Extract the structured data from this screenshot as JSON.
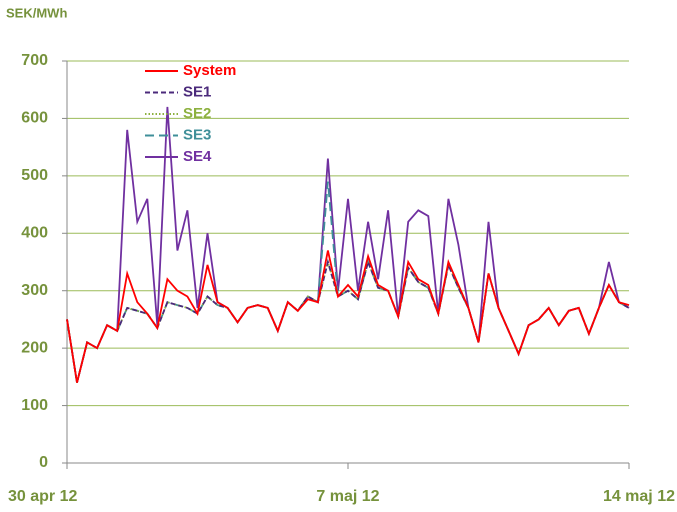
{
  "chart_data": {
    "type": "line",
    "title": "SEK/MWh",
    "categories": [
      "30 apr 12",
      null,
      null,
      null,
      null,
      null,
      null,
      null,
      null,
      null,
      null,
      null,
      null,
      null,
      null,
      null,
      null,
      null,
      null,
      null,
      null,
      null,
      null,
      null,
      null,
      null,
      null,
      null,
      "7 maj 12",
      null,
      null,
      null,
      null,
      null,
      null,
      null,
      null,
      null,
      null,
      null,
      null,
      null,
      null,
      null,
      null,
      null,
      null,
      null,
      null,
      null,
      null,
      null,
      null,
      null,
      null,
      null,
      "14 maj 12"
    ],
    "series": [
      {
        "name": "System",
        "color": "#ff0000",
        "linestyle": "solid",
        "values": [
          250,
          140,
          210,
          200,
          240,
          230,
          330,
          280,
          260,
          235,
          320,
          300,
          290,
          260,
          345,
          280,
          270,
          245,
          270,
          275,
          270,
          230,
          280,
          265,
          285,
          280,
          370,
          290,
          310,
          290,
          360,
          310,
          300,
          255,
          350,
          320,
          310,
          260,
          350,
          310,
          270,
          210,
          330,
          270,
          230,
          190,
          240,
          250,
          270,
          240,
          265,
          270,
          225,
          270,
          310,
          280,
          275
        ]
      },
      {
        "name": "SE1",
        "color": "#4b2a7b",
        "linestyle": "dashed",
        "values": [
          250,
          140,
          210,
          200,
          240,
          230,
          270,
          265,
          260,
          235,
          280,
          275,
          270,
          260,
          290,
          275,
          270,
          245,
          270,
          275,
          270,
          230,
          280,
          265,
          290,
          280,
          350,
          290,
          300,
          285,
          350,
          305,
          300,
          255,
          340,
          315,
          305,
          260,
          345,
          305,
          270,
          210,
          330,
          270,
          230,
          190,
          240,
          250,
          270,
          240,
          265,
          270,
          225,
          270,
          310,
          280,
          270
        ]
      },
      {
        "name": "SE2",
        "color": "#8db13f",
        "linestyle": "dotted",
        "values": [
          250,
          140,
          210,
          200,
          240,
          230,
          270,
          265,
          260,
          235,
          280,
          275,
          270,
          260,
          290,
          275,
          270,
          245,
          270,
          275,
          270,
          230,
          280,
          265,
          290,
          280,
          350,
          290,
          300,
          285,
          350,
          305,
          300,
          255,
          340,
          315,
          305,
          260,
          345,
          305,
          270,
          210,
          330,
          270,
          230,
          190,
          240,
          250,
          270,
          240,
          265,
          270,
          225,
          270,
          310,
          280,
          270
        ]
      },
      {
        "name": "SE3",
        "color": "#3f8f99",
        "linestyle": "longdash",
        "values": [
          250,
          140,
          210,
          200,
          240,
          230,
          270,
          265,
          260,
          235,
          280,
          275,
          270,
          260,
          290,
          275,
          270,
          245,
          270,
          275,
          270,
          230,
          280,
          265,
          290,
          280,
          490,
          290,
          300,
          285,
          350,
          305,
          300,
          255,
          340,
          315,
          305,
          260,
          345,
          305,
          270,
          210,
          330,
          270,
          230,
          190,
          240,
          250,
          270,
          240,
          265,
          270,
          225,
          270,
          310,
          280,
          270
        ]
      },
      {
        "name": "SE4",
        "color": "#7030a0",
        "linestyle": "solid",
        "values": [
          250,
          140,
          210,
          200,
          240,
          230,
          580,
          420,
          460,
          240,
          620,
          370,
          440,
          270,
          400,
          280,
          270,
          245,
          270,
          275,
          270,
          230,
          280,
          265,
          290,
          280,
          530,
          300,
          460,
          300,
          420,
          320,
          440,
          255,
          420,
          440,
          430,
          260,
          460,
          380,
          270,
          210,
          420,
          270,
          230,
          190,
          240,
          250,
          270,
          240,
          265,
          270,
          225,
          270,
          350,
          280,
          270
        ]
      }
    ],
    "ylim": [
      0,
      700
    ],
    "yticks": [
      0,
      100,
      200,
      300,
      400,
      500,
      600,
      700
    ],
    "grid": true,
    "legend": "upper left"
  }
}
